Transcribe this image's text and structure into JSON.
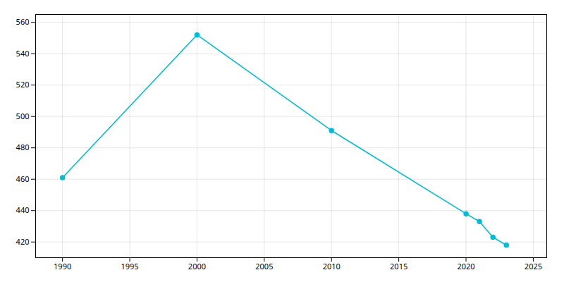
{
  "chart_data": {
    "type": "line",
    "x": [
      1990,
      2000,
      2010,
      2020,
      2021,
      2022,
      2023
    ],
    "values": [
      461,
      552,
      491,
      438,
      433,
      423,
      418
    ],
    "color": "#00bcd4",
    "marker": "circle",
    "xlim": [
      1988,
      2026
    ],
    "ylim": [
      410,
      565
    ],
    "xticks": [
      1990,
      1995,
      2000,
      2005,
      2010,
      2015,
      2020,
      2025
    ],
    "yticks": [
      420,
      440,
      460,
      480,
      500,
      520,
      540,
      560
    ],
    "grid": true
  }
}
